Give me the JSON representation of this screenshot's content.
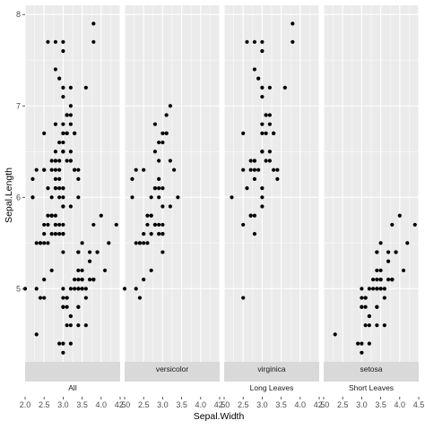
{
  "chart_data": {
    "type": "scatter",
    "xlabel": "Sepal.Width",
    "ylabel": "Sepal.Length",
    "xlim": [
      2.0,
      4.5
    ],
    "ylim": [
      4.2,
      8.1
    ],
    "x_ticks": [
      "2.0",
      "2.5",
      "3.0",
      "3.5",
      "4.0",
      "4.5"
    ],
    "y_ticks": [
      "5",
      "6",
      "7",
      "8"
    ],
    "grid": true,
    "background": "#ebebeb",
    "strip_fill": "#d9d9d9",
    "point_color": "#000000",
    "panels": [
      {
        "strip_label": "",
        "group_label": "All",
        "points": [
          [
            3.5,
            5.1
          ],
          [
            3.0,
            4.9
          ],
          [
            3.2,
            4.7
          ],
          [
            3.1,
            4.6
          ],
          [
            3.6,
            5.0
          ],
          [
            3.9,
            5.4
          ],
          [
            3.4,
            4.6
          ],
          [
            3.4,
            5.0
          ],
          [
            2.9,
            4.4
          ],
          [
            3.1,
            4.9
          ],
          [
            3.7,
            5.4
          ],
          [
            3.4,
            4.8
          ],
          [
            3.0,
            4.8
          ],
          [
            3.0,
            4.3
          ],
          [
            4.0,
            5.8
          ],
          [
            4.4,
            5.7
          ],
          [
            3.9,
            5.4
          ],
          [
            3.5,
            5.1
          ],
          [
            3.8,
            5.7
          ],
          [
            3.8,
            5.1
          ],
          [
            3.4,
            5.4
          ],
          [
            3.7,
            5.1
          ],
          [
            3.6,
            4.6
          ],
          [
            3.3,
            5.1
          ],
          [
            3.4,
            4.8
          ],
          [
            3.0,
            5.0
          ],
          [
            3.4,
            5.0
          ],
          [
            3.5,
            5.2
          ],
          [
            3.4,
            5.2
          ],
          [
            3.2,
            4.7
          ],
          [
            3.1,
            4.8
          ],
          [
            3.4,
            5.4
          ],
          [
            4.1,
            5.2
          ],
          [
            4.2,
            5.5
          ],
          [
            3.1,
            4.9
          ],
          [
            3.2,
            5.0
          ],
          [
            3.5,
            5.5
          ],
          [
            3.6,
            4.9
          ],
          [
            3.0,
            4.4
          ],
          [
            3.4,
            5.1
          ],
          [
            3.5,
            5.0
          ],
          [
            2.3,
            4.5
          ],
          [
            3.2,
            4.4
          ],
          [
            3.5,
            5.0
          ],
          [
            3.8,
            5.1
          ],
          [
            3.0,
            4.8
          ],
          [
            3.8,
            5.1
          ],
          [
            3.2,
            4.6
          ],
          [
            3.7,
            5.3
          ],
          [
            3.3,
            5.0
          ],
          [
            3.2,
            7.0
          ],
          [
            3.2,
            6.4
          ],
          [
            3.1,
            6.9
          ],
          [
            2.3,
            5.5
          ],
          [
            2.8,
            6.5
          ],
          [
            2.8,
            5.7
          ],
          [
            3.3,
            6.3
          ],
          [
            2.4,
            4.9
          ],
          [
            2.9,
            6.6
          ],
          [
            2.7,
            5.2
          ],
          [
            2.0,
            5.0
          ],
          [
            3.0,
            5.9
          ],
          [
            2.2,
            6.0
          ],
          [
            2.9,
            6.1
          ],
          [
            2.9,
            5.6
          ],
          [
            3.1,
            6.7
          ],
          [
            3.0,
            5.6
          ],
          [
            2.7,
            5.8
          ],
          [
            2.2,
            6.2
          ],
          [
            2.5,
            5.6
          ],
          [
            3.2,
            5.9
          ],
          [
            2.8,
            6.1
          ],
          [
            2.5,
            6.3
          ],
          [
            2.8,
            6.1
          ],
          [
            2.9,
            6.4
          ],
          [
            3.0,
            6.6
          ],
          [
            2.8,
            6.8
          ],
          [
            3.0,
            6.7
          ],
          [
            2.9,
            6.0
          ],
          [
            2.6,
            5.7
          ],
          [
            2.4,
            5.5
          ],
          [
            2.4,
            5.5
          ],
          [
            2.7,
            5.8
          ],
          [
            2.7,
            6.0
          ],
          [
            3.0,
            5.4
          ],
          [
            3.4,
            6.0
          ],
          [
            3.1,
            6.7
          ],
          [
            2.3,
            6.3
          ],
          [
            3.0,
            5.6
          ],
          [
            2.5,
            5.5
          ],
          [
            2.6,
            5.5
          ],
          [
            3.0,
            6.1
          ],
          [
            2.6,
            5.8
          ],
          [
            2.3,
            5.0
          ],
          [
            2.7,
            5.6
          ],
          [
            3.0,
            5.7
          ],
          [
            2.9,
            5.7
          ],
          [
            2.9,
            6.2
          ],
          [
            2.5,
            5.1
          ],
          [
            2.8,
            5.7
          ],
          [
            3.3,
            6.3
          ],
          [
            2.7,
            5.8
          ],
          [
            3.0,
            7.1
          ],
          [
            2.9,
            6.3
          ],
          [
            3.0,
            6.5
          ],
          [
            3.0,
            7.6
          ],
          [
            2.5,
            4.9
          ],
          [
            2.9,
            7.3
          ],
          [
            2.5,
            6.7
          ],
          [
            3.6,
            7.2
          ],
          [
            3.2,
            6.5
          ],
          [
            2.7,
            6.4
          ],
          [
            3.0,
            6.8
          ],
          [
            2.5,
            5.7
          ],
          [
            2.8,
            5.8
          ],
          [
            3.2,
            6.4
          ],
          [
            3.0,
            6.5
          ],
          [
            3.8,
            7.7
          ],
          [
            2.6,
            7.7
          ],
          [
            2.2,
            6.0
          ],
          [
            3.2,
            6.9
          ],
          [
            2.8,
            5.6
          ],
          [
            2.8,
            7.7
          ],
          [
            2.7,
            6.3
          ],
          [
            3.3,
            6.7
          ],
          [
            3.2,
            7.2
          ],
          [
            2.8,
            6.2
          ],
          [
            3.0,
            6.1
          ],
          [
            2.8,
            6.4
          ],
          [
            3.0,
            7.2
          ],
          [
            2.8,
            7.4
          ],
          [
            3.8,
            7.9
          ],
          [
            2.8,
            6.4
          ],
          [
            2.8,
            6.3
          ],
          [
            2.6,
            6.1
          ],
          [
            3.0,
            7.7
          ],
          [
            3.4,
            6.3
          ],
          [
            3.1,
            6.4
          ],
          [
            3.0,
            6.0
          ],
          [
            3.1,
            6.9
          ],
          [
            3.1,
            6.7
          ],
          [
            3.1,
            6.9
          ],
          [
            2.7,
            5.8
          ],
          [
            3.2,
            6.8
          ],
          [
            3.3,
            6.7
          ],
          [
            3.0,
            6.7
          ],
          [
            2.5,
            6.3
          ],
          [
            3.0,
            6.5
          ],
          [
            3.4,
            6.2
          ],
          [
            3.0,
            5.9
          ]
        ]
      },
      {
        "strip_label": "versicolor",
        "group_label": "",
        "points": [
          [
            3.2,
            7.0
          ],
          [
            3.2,
            6.4
          ],
          [
            3.1,
            6.9
          ],
          [
            2.3,
            5.5
          ],
          [
            2.8,
            6.5
          ],
          [
            2.8,
            5.7
          ],
          [
            3.3,
            6.3
          ],
          [
            2.4,
            4.9
          ],
          [
            2.9,
            6.6
          ],
          [
            2.7,
            5.2
          ],
          [
            2.0,
            5.0
          ],
          [
            3.0,
            5.9
          ],
          [
            2.2,
            6.0
          ],
          [
            2.9,
            6.1
          ],
          [
            2.9,
            5.6
          ],
          [
            3.1,
            6.7
          ],
          [
            3.0,
            5.6
          ],
          [
            2.7,
            5.8
          ],
          [
            2.2,
            6.2
          ],
          [
            2.5,
            5.6
          ],
          [
            3.2,
            5.9
          ],
          [
            2.8,
            6.1
          ],
          [
            2.5,
            6.3
          ],
          [
            2.8,
            6.1
          ],
          [
            2.9,
            6.4
          ],
          [
            3.0,
            6.6
          ],
          [
            2.8,
            6.8
          ],
          [
            3.0,
            6.7
          ],
          [
            2.9,
            6.0
          ],
          [
            2.6,
            5.7
          ],
          [
            2.4,
            5.5
          ],
          [
            2.4,
            5.5
          ],
          [
            2.7,
            5.8
          ],
          [
            2.7,
            6.0
          ],
          [
            3.0,
            5.4
          ],
          [
            3.4,
            6.0
          ],
          [
            3.1,
            6.7
          ],
          [
            2.3,
            6.3
          ],
          [
            3.0,
            5.6
          ],
          [
            2.5,
            5.5
          ],
          [
            2.6,
            5.5
          ],
          [
            3.0,
            6.1
          ],
          [
            2.6,
            5.8
          ],
          [
            2.3,
            5.0
          ],
          [
            2.7,
            5.6
          ],
          [
            3.0,
            5.7
          ],
          [
            2.9,
            5.7
          ],
          [
            2.9,
            6.2
          ],
          [
            2.5,
            5.1
          ],
          [
            2.8,
            5.7
          ]
        ]
      },
      {
        "strip_label": "virginica",
        "group_label": "Long Leaves",
        "points": [
          [
            3.3,
            6.3
          ],
          [
            2.7,
            5.8
          ],
          [
            3.0,
            7.1
          ],
          [
            2.9,
            6.3
          ],
          [
            3.0,
            6.5
          ],
          [
            3.0,
            7.6
          ],
          [
            2.5,
            4.9
          ],
          [
            2.9,
            7.3
          ],
          [
            2.5,
            6.7
          ],
          [
            3.6,
            7.2
          ],
          [
            3.2,
            6.5
          ],
          [
            2.7,
            6.4
          ],
          [
            3.0,
            6.8
          ],
          [
            2.5,
            5.7
          ],
          [
            2.8,
            5.8
          ],
          [
            3.2,
            6.4
          ],
          [
            3.0,
            6.5
          ],
          [
            3.8,
            7.7
          ],
          [
            2.6,
            7.7
          ],
          [
            2.2,
            6.0
          ],
          [
            3.2,
            6.9
          ],
          [
            2.8,
            5.6
          ],
          [
            2.8,
            7.7
          ],
          [
            2.7,
            6.3
          ],
          [
            3.3,
            6.7
          ],
          [
            3.2,
            7.2
          ],
          [
            2.8,
            6.2
          ],
          [
            3.0,
            6.1
          ],
          [
            2.8,
            6.4
          ],
          [
            3.0,
            7.2
          ],
          [
            2.8,
            7.4
          ],
          [
            3.8,
            7.9
          ],
          [
            2.8,
            6.4
          ],
          [
            2.8,
            6.3
          ],
          [
            2.6,
            6.1
          ],
          [
            3.0,
            7.7
          ],
          [
            3.4,
            6.3
          ],
          [
            3.1,
            6.4
          ],
          [
            3.0,
            6.0
          ],
          [
            3.1,
            6.9
          ],
          [
            3.1,
            6.7
          ],
          [
            3.1,
            6.9
          ],
          [
            2.7,
            5.8
          ],
          [
            3.2,
            6.8
          ],
          [
            3.3,
            6.7
          ],
          [
            3.0,
            6.7
          ],
          [
            2.5,
            6.3
          ],
          [
            3.0,
            6.5
          ],
          [
            3.4,
            6.2
          ],
          [
            3.0,
            5.9
          ]
        ]
      },
      {
        "strip_label": "setosa",
        "group_label": "Short Leaves",
        "points": [
          [
            3.5,
            5.1
          ],
          [
            3.0,
            4.9
          ],
          [
            3.2,
            4.7
          ],
          [
            3.1,
            4.6
          ],
          [
            3.6,
            5.0
          ],
          [
            3.9,
            5.4
          ],
          [
            3.4,
            4.6
          ],
          [
            3.4,
            5.0
          ],
          [
            2.9,
            4.4
          ],
          [
            3.1,
            4.9
          ],
          [
            3.7,
            5.4
          ],
          [
            3.4,
            4.8
          ],
          [
            3.0,
            4.8
          ],
          [
            3.0,
            4.3
          ],
          [
            4.0,
            5.8
          ],
          [
            4.4,
            5.7
          ],
          [
            3.9,
            5.4
          ],
          [
            3.5,
            5.1
          ],
          [
            3.8,
            5.7
          ],
          [
            3.8,
            5.1
          ],
          [
            3.4,
            5.4
          ],
          [
            3.7,
            5.1
          ],
          [
            3.6,
            4.6
          ],
          [
            3.3,
            5.1
          ],
          [
            3.4,
            4.8
          ],
          [
            3.0,
            5.0
          ],
          [
            3.4,
            5.0
          ],
          [
            3.5,
            5.2
          ],
          [
            3.4,
            5.2
          ],
          [
            3.2,
            4.7
          ],
          [
            3.1,
            4.8
          ],
          [
            3.4,
            5.4
          ],
          [
            4.1,
            5.2
          ],
          [
            4.2,
            5.5
          ],
          [
            3.1,
            4.9
          ],
          [
            3.2,
            5.0
          ],
          [
            3.5,
            5.5
          ],
          [
            3.6,
            4.9
          ],
          [
            3.0,
            4.4
          ],
          [
            3.4,
            5.1
          ],
          [
            3.5,
            5.0
          ],
          [
            2.3,
            4.5
          ],
          [
            3.2,
            4.4
          ],
          [
            3.5,
            5.0
          ],
          [
            3.8,
            5.1
          ],
          [
            3.0,
            4.8
          ],
          [
            3.8,
            5.1
          ],
          [
            3.2,
            4.6
          ],
          [
            3.7,
            5.3
          ],
          [
            3.3,
            5.0
          ]
        ]
      }
    ]
  }
}
